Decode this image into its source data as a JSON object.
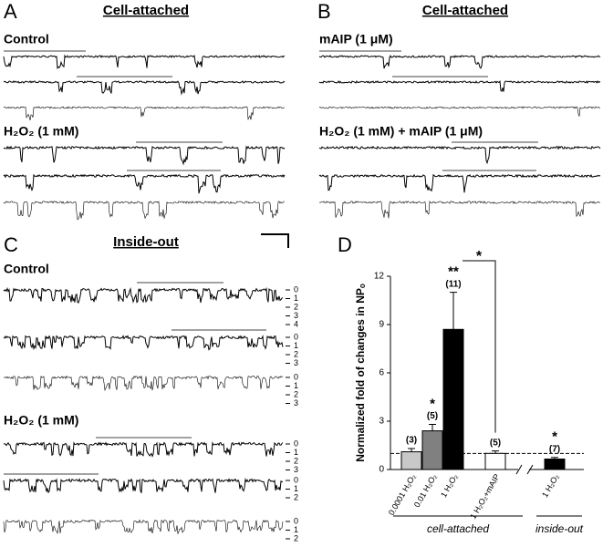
{
  "panels": [
    {
      "letter": "A",
      "title": "Cell-attached",
      "conditions": [
        {
          "label": "Control"
        },
        {
          "label": "H₂O₂ (1 mM)"
        }
      ]
    },
    {
      "letter": "B",
      "title": "Cell-attached",
      "conditions": [
        {
          "label": "mAIP (1 μM)"
        },
        {
          "label": "H₂O₂ (1 mM) + mAIP (1 μM)"
        }
      ]
    }
  ],
  "inside_out": {
    "letter": "C",
    "title": "Inside-out",
    "conditions": [
      {
        "label": "Control",
        "levels": [
          [
            0,
            1,
            2,
            3,
            4
          ],
          [
            0,
            1,
            2,
            3
          ],
          [
            0,
            1,
            2,
            3
          ]
        ]
      },
      {
        "label": "H₂O₂ (1 mM)",
        "levels": [
          [
            0,
            1,
            2,
            3
          ],
          [
            0,
            1,
            2
          ],
          [
            0,
            1,
            2
          ]
        ]
      }
    ]
  },
  "chart_data": {
    "type": "bar",
    "letter": "D",
    "ylabel": "Normalized fold of changes in NPₒ",
    "categories": [
      "0.0001 H₂O₂",
      "0.01 H₂O₂",
      "1 H₂O₂",
      "1 H₂O₂+mAIP",
      "1 H₂O₂"
    ],
    "values": [
      1.1,
      2.4,
      8.7,
      1.0,
      0.65
    ],
    "errors": [
      0.2,
      0.4,
      2.3,
      0.15,
      0.1
    ],
    "colors": [
      "#c8c8c8",
      "#808080",
      "#000000",
      "#ffffff",
      "#000000"
    ],
    "n_labels": [
      "(3)",
      "(5)",
      "(11)",
      "(5)",
      "(7)"
    ],
    "significance": [
      {
        "index": 1,
        "label": "*"
      },
      {
        "index": 2,
        "label": "**"
      },
      {
        "index": 4,
        "label": "*"
      }
    ],
    "bracket": {
      "from": 2,
      "to": 3,
      "label": "*"
    },
    "groups": [
      {
        "label": "cell-attached",
        "from": 0,
        "to": 3
      },
      {
        "label": "inside-out",
        "from": 4,
        "to": 4
      }
    ],
    "reference_line": 1,
    "ylim": [
      0,
      12
    ],
    "yticks": [
      0,
      3,
      6,
      9,
      12
    ]
  }
}
